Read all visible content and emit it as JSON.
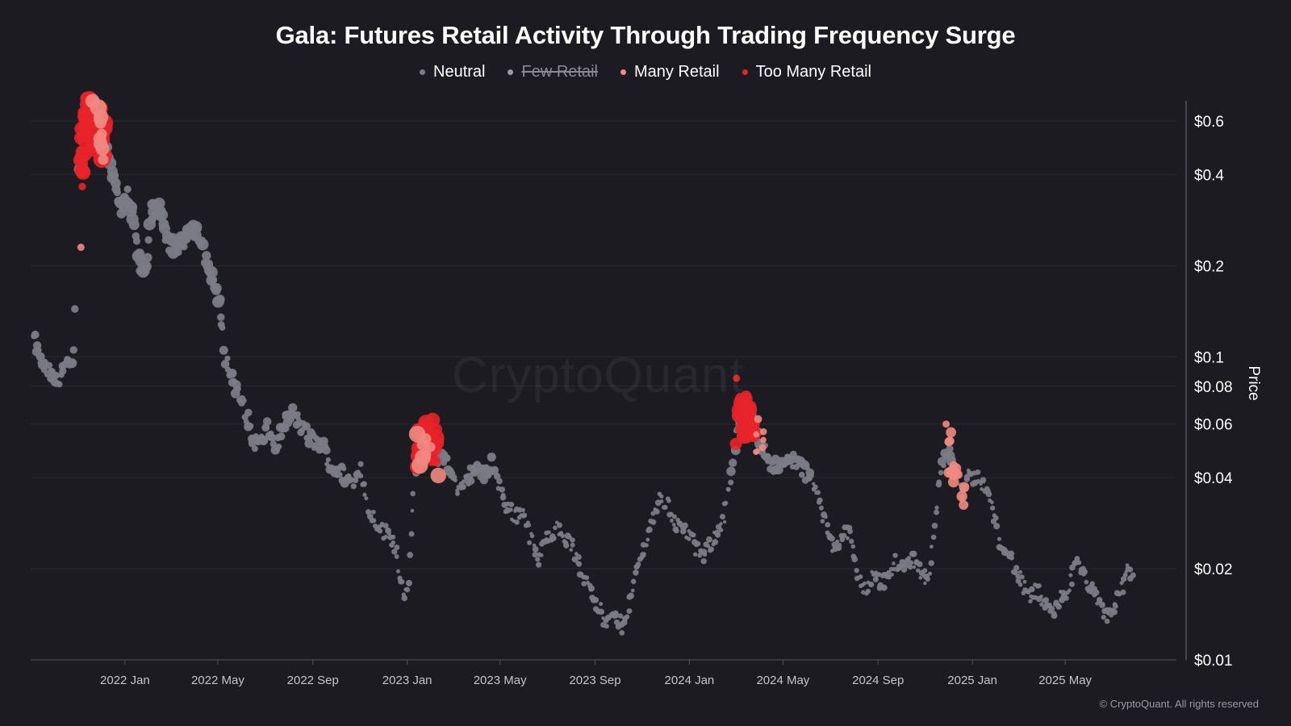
{
  "chart_data": {
    "type": "scatter",
    "title": "Gala: Futures Retail Activity Through Trading Frequency Surge",
    "ylabel": "Price",
    "y_scale": "log",
    "ylim": [
      0.01,
      0.7
    ],
    "y_ticks": [
      {
        "value": 0.6,
        "label": "$0.6"
      },
      {
        "value": 0.4,
        "label": "$0.4"
      },
      {
        "value": 0.2,
        "label": "$0.2"
      },
      {
        "value": 0.1,
        "label": "$0.1"
      },
      {
        "value": 0.08,
        "label": "$0.08"
      },
      {
        "value": 0.06,
        "label": "$0.06"
      },
      {
        "value": 0.04,
        "label": "$0.04"
      },
      {
        "value": 0.02,
        "label": "$0.02"
      },
      {
        "value": 0.01,
        "label": "$0.01"
      }
    ],
    "xlim": [
      "2021-09-01",
      "2025-09-01"
    ],
    "x_ticks": [
      {
        "value": "2022-01-01",
        "label": "2022 Jan"
      },
      {
        "value": "2022-05-01",
        "label": "2022 May"
      },
      {
        "value": "2022-09-01",
        "label": "2022 Sep"
      },
      {
        "value": "2023-01-01",
        "label": "2023 Jan"
      },
      {
        "value": "2023-05-01",
        "label": "2023 May"
      },
      {
        "value": "2023-09-01",
        "label": "2023 Sep"
      },
      {
        "value": "2024-01-01",
        "label": "2024 Jan"
      },
      {
        "value": "2024-05-01",
        "label": "2024 May"
      },
      {
        "value": "2024-09-01",
        "label": "2024 Sep"
      },
      {
        "value": "2025-01-01",
        "label": "2025 Jan"
      },
      {
        "value": "2025-05-01",
        "label": "2025 May"
      }
    ],
    "grid": true,
    "legend_position": "top-center",
    "series": [
      {
        "name": "Neutral",
        "color": "#7b7b86",
        "visible": true
      },
      {
        "name": "Few Retail",
        "color": "#9a9aa2",
        "visible": false
      },
      {
        "name": "Many Retail",
        "color": "#f08a82",
        "visible": true
      },
      {
        "name": "Too Many Retail",
        "color": "#e8242a",
        "visible": true
      }
    ],
    "price_path": [
      [
        "2021-09-05",
        0.115
      ],
      [
        "2021-09-15",
        0.095
      ],
      [
        "2021-09-25",
        0.088
      ],
      [
        "2021-10-05",
        0.082
      ],
      [
        "2021-10-15",
        0.094
      ],
      [
        "2021-10-25",
        0.092
      ],
      [
        "2021-11-05",
        0.45
      ],
      [
        "2021-11-10",
        0.62
      ],
      [
        "2021-11-20",
        0.6
      ],
      [
        "2021-11-28",
        0.56
      ],
      [
        "2021-12-05",
        0.5
      ],
      [
        "2021-12-12",
        0.46
      ],
      [
        "2021-12-20",
        0.36
      ],
      [
        "2021-12-28",
        0.3
      ],
      [
        "2022-01-05",
        0.34
      ],
      [
        "2022-01-12",
        0.27
      ],
      [
        "2022-01-20",
        0.2
      ],
      [
        "2022-01-28",
        0.19
      ],
      [
        "2022-02-05",
        0.32
      ],
      [
        "2022-02-15",
        0.3
      ],
      [
        "2022-02-25",
        0.24
      ],
      [
        "2022-03-05",
        0.23
      ],
      [
        "2022-03-15",
        0.235
      ],
      [
        "2022-03-25",
        0.27
      ],
      [
        "2022-04-05",
        0.26
      ],
      [
        "2022-04-15",
        0.21
      ],
      [
        "2022-04-25",
        0.18
      ],
      [
        "2022-05-05",
        0.14
      ],
      [
        "2022-05-12",
        0.095
      ],
      [
        "2022-05-20",
        0.085
      ],
      [
        "2022-05-28",
        0.075
      ],
      [
        "2022-06-05",
        0.068
      ],
      [
        "2022-06-15",
        0.053
      ],
      [
        "2022-06-25",
        0.052
      ],
      [
        "2022-07-05",
        0.058
      ],
      [
        "2022-07-15",
        0.05
      ],
      [
        "2022-07-25",
        0.06
      ],
      [
        "2022-08-05",
        0.065
      ],
      [
        "2022-08-15",
        0.06
      ],
      [
        "2022-08-25",
        0.055
      ],
      [
        "2022-09-05",
        0.052
      ],
      [
        "2022-09-15",
        0.05
      ],
      [
        "2022-09-25",
        0.043
      ],
      [
        "2022-10-05",
        0.042
      ],
      [
        "2022-10-15",
        0.04
      ],
      [
        "2022-10-25",
        0.038
      ],
      [
        "2022-11-02",
        0.045
      ],
      [
        "2022-11-08",
        0.034
      ],
      [
        "2022-11-15",
        0.03
      ],
      [
        "2022-11-25",
        0.028
      ],
      [
        "2022-12-05",
        0.026
      ],
      [
        "2022-12-15",
        0.025
      ],
      [
        "2022-12-25",
        0.018
      ],
      [
        "2023-01-01",
        0.016
      ],
      [
        "2023-01-05",
        0.022
      ],
      [
        "2023-01-10",
        0.04
      ],
      [
        "2023-01-15",
        0.047
      ],
      [
        "2023-01-25",
        0.055
      ],
      [
        "2023-02-05",
        0.052
      ],
      [
        "2023-02-12",
        0.045
      ],
      [
        "2023-02-20",
        0.047
      ],
      [
        "2023-03-01",
        0.04
      ],
      [
        "2023-03-10",
        0.035
      ],
      [
        "2023-03-20",
        0.04
      ],
      [
        "2023-04-01",
        0.043
      ],
      [
        "2023-04-10",
        0.04
      ],
      [
        "2023-04-20",
        0.045
      ],
      [
        "2023-04-30",
        0.038
      ],
      [
        "2023-05-10",
        0.032
      ],
      [
        "2023-05-20",
        0.03
      ],
      [
        "2023-06-01",
        0.031
      ],
      [
        "2023-06-10",
        0.025
      ],
      [
        "2023-06-20",
        0.021
      ],
      [
        "2023-07-01",
        0.026
      ],
      [
        "2023-07-15",
        0.027
      ],
      [
        "2023-08-01",
        0.024
      ],
      [
        "2023-08-15",
        0.019
      ],
      [
        "2023-08-25",
        0.018
      ],
      [
        "2023-09-05",
        0.015
      ],
      [
        "2023-09-15",
        0.013
      ],
      [
        "2023-09-25",
        0.014
      ],
      [
        "2023-10-05",
        0.013
      ],
      [
        "2023-10-15",
        0.015
      ],
      [
        "2023-10-25",
        0.02
      ],
      [
        "2023-11-05",
        0.024
      ],
      [
        "2023-11-15",
        0.03
      ],
      [
        "2023-11-25",
        0.034
      ],
      [
        "2023-12-05",
        0.032
      ],
      [
        "2023-12-15",
        0.028
      ],
      [
        "2024-01-01",
        0.026
      ],
      [
        "2024-01-10",
        0.023
      ],
      [
        "2024-01-20",
        0.022
      ],
      [
        "2024-02-01",
        0.025
      ],
      [
        "2024-02-15",
        0.03
      ],
      [
        "2024-02-25",
        0.042
      ],
      [
        "2024-03-05",
        0.062
      ],
      [
        "2024-03-15",
        0.065
      ],
      [
        "2024-03-25",
        0.06
      ],
      [
        "2024-04-05",
        0.05
      ],
      [
        "2024-04-15",
        0.045
      ],
      [
        "2024-04-25",
        0.043
      ],
      [
        "2024-05-05",
        0.045
      ],
      [
        "2024-05-15",
        0.046
      ],
      [
        "2024-05-25",
        0.043
      ],
      [
        "2024-06-05",
        0.04
      ],
      [
        "2024-06-15",
        0.035
      ],
      [
        "2024-06-25",
        0.028
      ],
      [
        "2024-07-05",
        0.024
      ],
      [
        "2024-07-15",
        0.025
      ],
      [
        "2024-07-25",
        0.027
      ],
      [
        "2024-08-05",
        0.019
      ],
      [
        "2024-08-15",
        0.017
      ],
      [
        "2024-08-25",
        0.019
      ],
      [
        "2024-09-05",
        0.018
      ],
      [
        "2024-09-15",
        0.019
      ],
      [
        "2024-09-25",
        0.021
      ],
      [
        "2024-10-05",
        0.02
      ],
      [
        "2024-10-15",
        0.022
      ],
      [
        "2024-10-25",
        0.02
      ],
      [
        "2024-11-05",
        0.018
      ],
      [
        "2024-11-12",
        0.028
      ],
      [
        "2024-11-20",
        0.04
      ],
      [
        "2024-11-28",
        0.05
      ],
      [
        "2024-12-05",
        0.047
      ],
      [
        "2024-12-12",
        0.04
      ],
      [
        "2024-12-20",
        0.036
      ],
      [
        "2024-12-28",
        0.04
      ],
      [
        "2025-01-05",
        0.04
      ],
      [
        "2025-01-15",
        0.038
      ],
      [
        "2025-01-25",
        0.033
      ],
      [
        "2025-02-05",
        0.025
      ],
      [
        "2025-02-15",
        0.023
      ],
      [
        "2025-02-25",
        0.02
      ],
      [
        "2025-03-05",
        0.018
      ],
      [
        "2025-03-15",
        0.016
      ],
      [
        "2025-03-25",
        0.017
      ],
      [
        "2025-04-05",
        0.015
      ],
      [
        "2025-04-15",
        0.014
      ],
      [
        "2025-04-25",
        0.016
      ],
      [
        "2025-05-05",
        0.017
      ],
      [
        "2025-05-15",
        0.021
      ],
      [
        "2025-05-25",
        0.019
      ],
      [
        "2025-06-05",
        0.017
      ],
      [
        "2025-06-15",
        0.015
      ],
      [
        "2025-06-25",
        0.014
      ],
      [
        "2025-07-05",
        0.015
      ],
      [
        "2025-07-15",
        0.018
      ],
      [
        "2025-07-22",
        0.02
      ],
      [
        "2025-07-28",
        0.018
      ]
    ],
    "retail_clusters": [
      {
        "series": "Too Many Retail",
        "from": "2021-11-05",
        "to": "2021-12-05",
        "count": 55,
        "size": "large"
      },
      {
        "series": "Many Retail",
        "from": "2021-11-20",
        "to": "2021-12-05",
        "count": 10,
        "size": "large"
      },
      {
        "series": "Too Many Retail",
        "from": "2021-11-04",
        "to": "2021-11-09",
        "count": 4,
        "size": "small"
      },
      {
        "series": "Many Retail",
        "date": "2021-11-05",
        "price": 0.23
      },
      {
        "series": "Too Many Retail",
        "from": "2023-01-15",
        "to": "2023-02-08",
        "count": 30,
        "size": "large"
      },
      {
        "series": "Many Retail",
        "from": "2023-01-15",
        "to": "2023-02-12",
        "count": 8,
        "size": "large"
      },
      {
        "series": "Too Many Retail",
        "from": "2024-03-03",
        "to": "2024-03-25",
        "count": 32,
        "size": "large"
      },
      {
        "series": "Too Many Retail",
        "date": "2024-03-02",
        "price": 0.085
      },
      {
        "series": "Many Retail",
        "from": "2024-03-25",
        "to": "2024-04-05",
        "count": 7,
        "size": "small"
      },
      {
        "series": "Many Retail",
        "from": "2024-11-28",
        "to": "2024-12-20",
        "count": 14,
        "size": "medium"
      },
      {
        "series": "Many Retail",
        "date": "2024-11-28",
        "price": 0.06
      }
    ]
  },
  "watermark": "CryptoQuant",
  "footer": "© CryptoQuant. All rights reserved"
}
